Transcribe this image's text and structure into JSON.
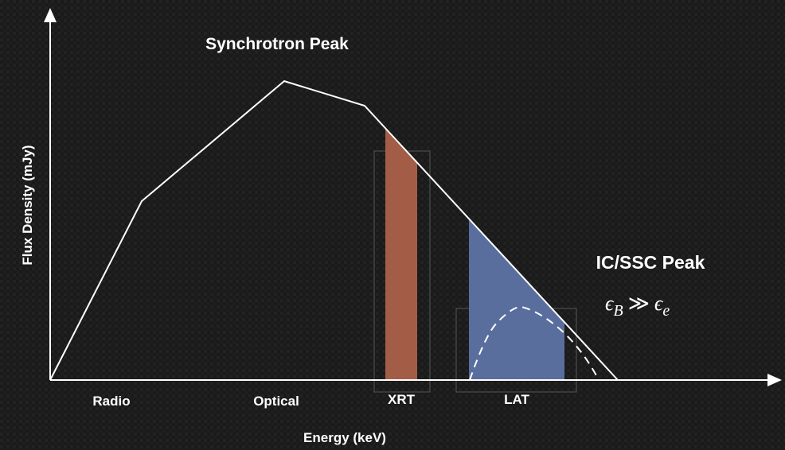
{
  "title": "Synchrotron Peak",
  "second_peak": {
    "label": "IC/SSC Peak",
    "condition": {
      "symbol_left": "ϵ",
      "subscript_left": "B",
      "relation": "≫",
      "symbol_right": "ϵ",
      "subscript_right": "e"
    }
  },
  "y_axis_label": "Flux Density (mJy)",
  "x_axis_label": "Energy (keV)",
  "bands": [
    "Radio",
    "Optical",
    "XRT",
    "LAT"
  ]
}
